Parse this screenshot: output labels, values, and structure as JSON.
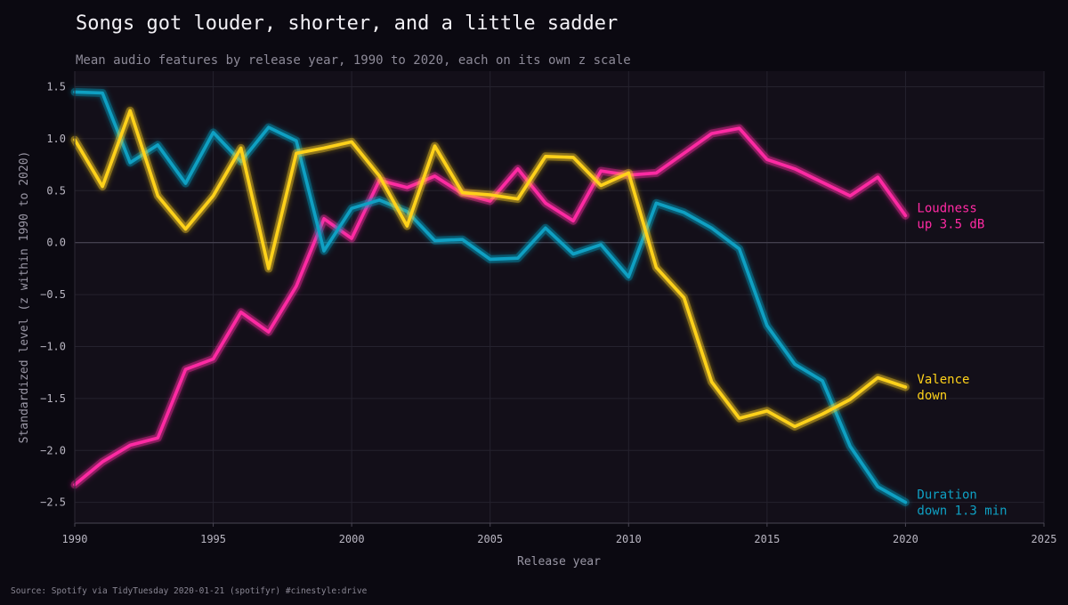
{
  "chart_data": {
    "type": "line",
    "title": "Songs got louder, shorter, and a little sadder",
    "subtitle": "Mean audio features by release year, 1990 to 2020, each on its own z scale",
    "xlabel": "Release year",
    "ylabel": "Standardized level (z within 1990 to 2020)",
    "source": "Source: Spotify via TidyTuesday 2020-01-21 (spotifyr)  #cinestyle:drive",
    "xlim": [
      1990,
      2025
    ],
    "ylim": [
      -2.7,
      1.65
    ],
    "x_ticks": [
      1990,
      1995,
      2000,
      2005,
      2010,
      2015,
      2020,
      2025
    ],
    "x_tick_labels": [
      "1990",
      "1995",
      "2000",
      "2005",
      "2010",
      "2015",
      "2020",
      "2025"
    ],
    "y_ticks": [
      1.5,
      1.0,
      0.5,
      0.0,
      -0.5,
      -1.0,
      -1.5,
      -2.0,
      -2.5
    ],
    "y_tick_labels": [
      "1.5",
      "1.0",
      "0.5",
      "0.0",
      "−0.5",
      "−1.0",
      "−1.5",
      "−2.0",
      "−2.5"
    ],
    "grid": true,
    "x": [
      1990,
      1991,
      1992,
      1993,
      1994,
      1995,
      1996,
      1997,
      1998,
      1999,
      2000,
      2001,
      2002,
      2003,
      2004,
      2005,
      2006,
      2007,
      2008,
      2009,
      2010,
      2011,
      2012,
      2013,
      2014,
      2015,
      2016,
      2017,
      2018,
      2019,
      2020
    ],
    "series": [
      {
        "color": "#ff2aa3",
        "annotation": [
          "Loudness",
          "up 3.5 dB"
        ],
        "values": [
          -2.33,
          -2.11,
          -1.95,
          -1.88,
          -1.22,
          -1.12,
          -0.67,
          -0.86,
          -0.42,
          0.23,
          0.04,
          0.6,
          0.53,
          0.64,
          0.47,
          0.4,
          0.71,
          0.38,
          0.21,
          0.69,
          0.65,
          0.67,
          0.86,
          1.05,
          1.1,
          0.8,
          0.71,
          0.58,
          0.45,
          0.63,
          0.26
        ]
      },
      {
        "color": "#0fa0c3",
        "annotation": [
          "Duration",
          "down 1.3 min"
        ],
        "values": [
          1.45,
          1.44,
          0.77,
          0.94,
          0.57,
          1.06,
          0.78,
          1.11,
          0.98,
          -0.08,
          0.33,
          0.41,
          0.3,
          0.02,
          0.03,
          -0.16,
          -0.15,
          0.14,
          -0.11,
          -0.02,
          -0.33,
          0.38,
          0.29,
          0.14,
          -0.06,
          -0.8,
          -1.17,
          -1.33,
          -1.96,
          -2.35,
          -2.5
        ]
      },
      {
        "color": "#ffd21a",
        "annotation": [
          "Valence",
          "down"
        ],
        "values": [
          0.99,
          0.54,
          1.27,
          0.45,
          0.13,
          0.45,
          0.91,
          -0.25,
          0.86,
          0.91,
          0.97,
          0.64,
          0.16,
          0.93,
          0.48,
          0.46,
          0.42,
          0.83,
          0.82,
          0.55,
          0.67,
          -0.24,
          -0.53,
          -1.34,
          -1.69,
          -1.62,
          -1.77,
          -1.65,
          -1.51,
          -1.3,
          -1.39
        ]
      }
    ]
  }
}
